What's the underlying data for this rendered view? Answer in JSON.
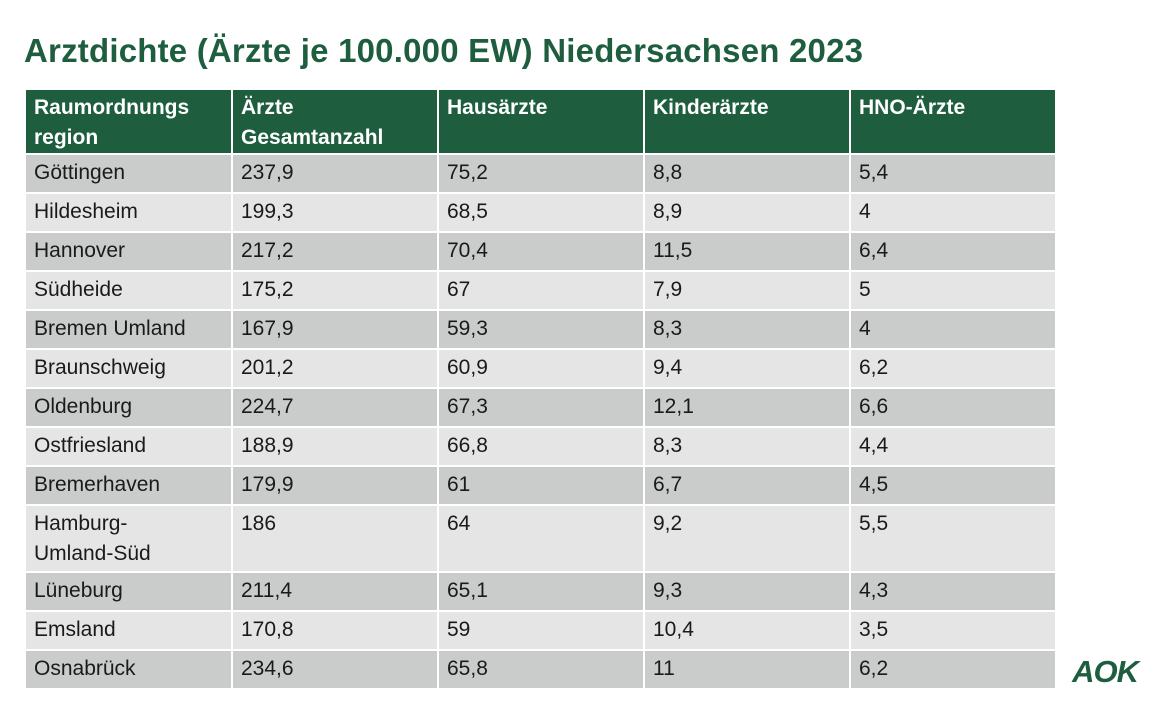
{
  "title": "Arztdichte (Ärzte je 100.000 EW) Niedersachsen 2023",
  "table": {
    "headers": [
      [
        "Raumordnungs",
        "region"
      ],
      [
        "Ärzte",
        "Gesamtanzahl"
      ],
      [
        "Hausärzte",
        ""
      ],
      [
        "Kinderärzte",
        ""
      ],
      [
        "HNO-Ärzte",
        ""
      ]
    ],
    "rows": [
      [
        "Göttingen",
        "237,9",
        "75,2",
        "8,8",
        "5,4"
      ],
      [
        "Hildesheim",
        "199,3",
        "68,5",
        "8,9",
        "4"
      ],
      [
        "Hannover",
        "217,2",
        "70,4",
        "11,5",
        "6,4"
      ],
      [
        "Südheide",
        "175,2",
        "67",
        "7,9",
        "5"
      ],
      [
        "Bremen Umland",
        "167,9",
        "59,3",
        "8,3",
        "4"
      ],
      [
        "Braunschweig",
        "201,2",
        "60,9",
        "9,4",
        "6,2"
      ],
      [
        "Oldenburg",
        "224,7",
        "67,3",
        "12,1",
        "6,6"
      ],
      [
        "Ostfriesland",
        "188,9",
        "66,8",
        "8,3",
        "4,4"
      ],
      [
        "Bremerhaven",
        "179,9",
        "61",
        "6,7",
        "4,5"
      ],
      [
        "Hamburg-\nUmland-Süd",
        "186",
        "64",
        "9,2",
        "5,5"
      ],
      [
        "Lüneburg",
        "211,4",
        "65,1",
        "9,3",
        "4,3"
      ],
      [
        "Emsland",
        "170,8",
        "59",
        "10,4",
        "3,5"
      ],
      [
        "Osnabrück",
        "234,6",
        "65,8",
        "11",
        "6,2"
      ]
    ]
  },
  "logo_text": "AOK",
  "colors": {
    "brand_green": "#1e5e3f",
    "row_dark": "#c9ccca",
    "row_light": "#e4e5e4"
  }
}
